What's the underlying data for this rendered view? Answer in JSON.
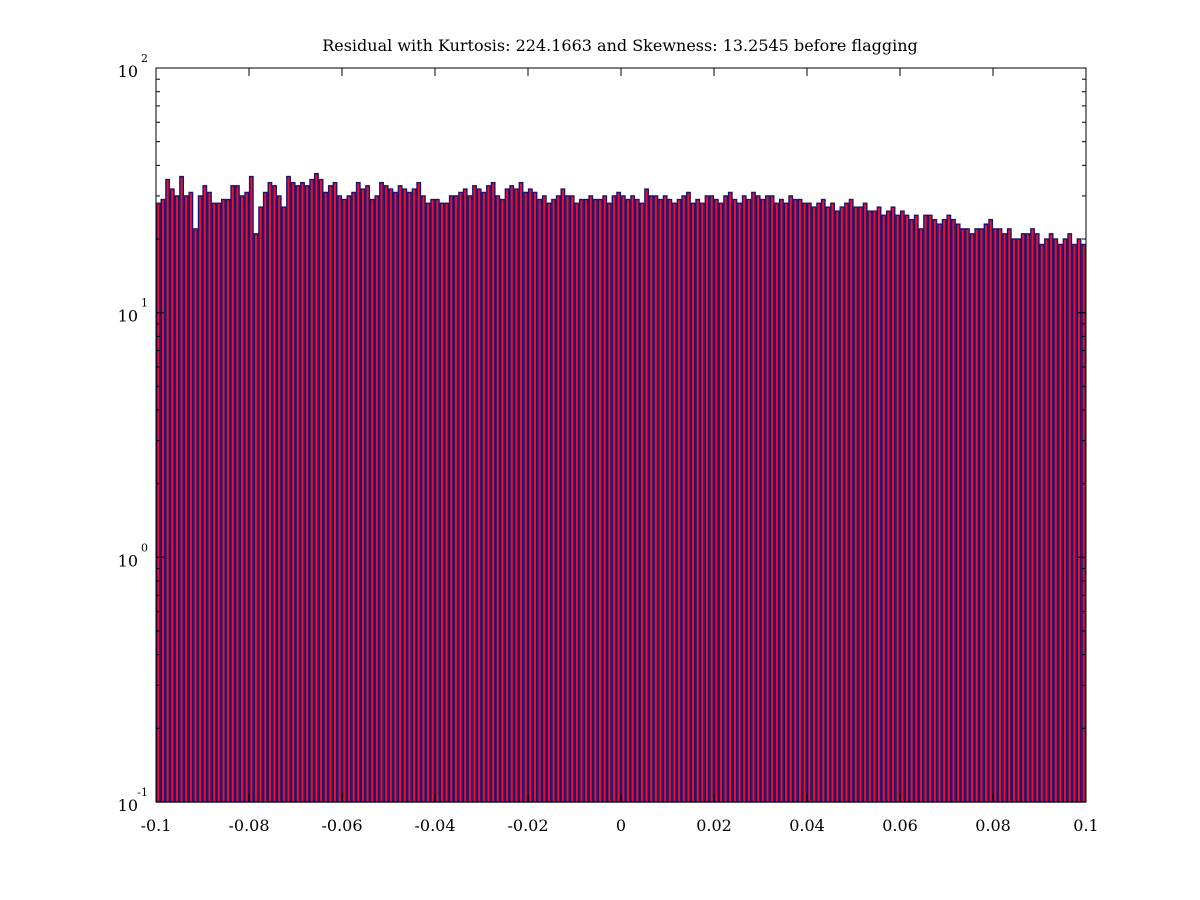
{
  "chart_data": {
    "type": "bar",
    "title": "Residual with Kurtosis: 224.1663 and Skewness: 13.2545 before flagging",
    "xlabel": "",
    "ylabel": "",
    "x_scale": "linear",
    "y_scale": "log",
    "xlim": [
      -0.1,
      0.1
    ],
    "ylim": [
      0.1,
      100
    ],
    "x_ticks": [
      {
        "value": -0.1,
        "label": "-0.1"
      },
      {
        "value": -0.08,
        "label": "-0.08"
      },
      {
        "value": -0.06,
        "label": "-0.06"
      },
      {
        "value": -0.04,
        "label": "-0.04"
      },
      {
        "value": -0.02,
        "label": "-0.02"
      },
      {
        "value": 0,
        "label": "0"
      },
      {
        "value": 0.02,
        "label": "0.02"
      },
      {
        "value": 0.04,
        "label": "0.04"
      },
      {
        "value": 0.06,
        "label": "0.06"
      },
      {
        "value": 0.08,
        "label": "0.08"
      },
      {
        "value": 0.1,
        "label": "0.1"
      }
    ],
    "y_ticks": [
      {
        "value": 0.1,
        "base": "10",
        "exp": "-1"
      },
      {
        "value": 1,
        "base": "10",
        "exp": "0"
      },
      {
        "value": 10,
        "base": "10",
        "exp": "1"
      },
      {
        "value": 100,
        "base": "10",
        "exp": "2"
      }
    ],
    "bin_start": -0.1,
    "bin_width": 0.001,
    "values": [
      28,
      29,
      35,
      32,
      30,
      36,
      30,
      31,
      22,
      30,
      33,
      31,
      28,
      28,
      29,
      29,
      33,
      33,
      30,
      31,
      36,
      21,
      27,
      31,
      34,
      33,
      30,
      27,
      36,
      34,
      33,
      34,
      33,
      35,
      37,
      35,
      31,
      33,
      34,
      30,
      29,
      30,
      31,
      34,
      32,
      33,
      29,
      30,
      34,
      33,
      32,
      31,
      33,
      32,
      31,
      32,
      34,
      30,
      28,
      29,
      29,
      28,
      28,
      30,
      30,
      31,
      32,
      30,
      33,
      32,
      31,
      33,
      34,
      30,
      29,
      32,
      33,
      32,
      34,
      31,
      32,
      31,
      29,
      30,
      28,
      29,
      30,
      32,
      30,
      30,
      28,
      29,
      29,
      30,
      29,
      29,
      30,
      28,
      30,
      31,
      30,
      29,
      30,
      29,
      28,
      32,
      30,
      30,
      29,
      30,
      29,
      28,
      29,
      30,
      31,
      28,
      29,
      28,
      30,
      30,
      29,
      28,
      30,
      31,
      29,
      28,
      30,
      29,
      31,
      30,
      29,
      30,
      30,
      28,
      29,
      28,
      30,
      29,
      29,
      28,
      28,
      27,
      28,
      29,
      27,
      28,
      26,
      27,
      28,
      29,
      27,
      27,
      28,
      26,
      26,
      27,
      25,
      26,
      27,
      25,
      26,
      25,
      24,
      25,
      22,
      25,
      25,
      24,
      23,
      24,
      25,
      24,
      23,
      22,
      22,
      21,
      22,
      22,
      23,
      24,
      22,
      22,
      21,
      22,
      20,
      20,
      21,
      21,
      22,
      21,
      19,
      20,
      21,
      20,
      19,
      20,
      21,
      19,
      20,
      19
    ]
  }
}
